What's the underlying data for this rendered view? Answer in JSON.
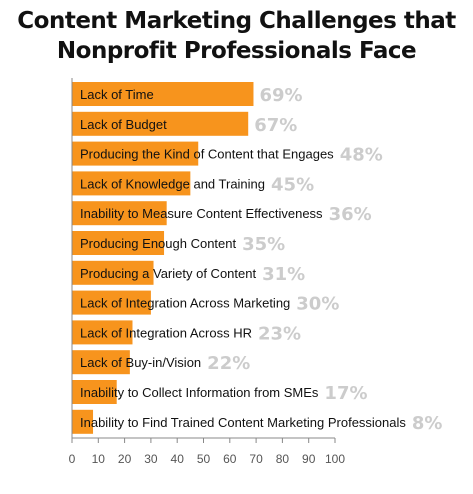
{
  "chart_data": {
    "type": "bar",
    "orientation": "horizontal",
    "title_lines": [
      "Content Marketing Challenges that",
      "Nonprofit Professionals Face"
    ],
    "categories": [
      "Lack of Time",
      "Lack of Budget",
      "Producing the Kind of Content that Engages",
      "Lack of Knowledge and Training",
      "Inability to Measure Content Effectiveness",
      "Producing Enough Content",
      "Producing a Variety of Content",
      "Lack of Integration Across Marketing",
      "Lack of Integration Across HR",
      "Lack of Buy-in/Vision",
      "Inability to Collect Information from SMEs",
      "Inability to Find Trained Content Marketing Professionals"
    ],
    "values": [
      69,
      67,
      48,
      45,
      36,
      35,
      31,
      30,
      23,
      22,
      17,
      8
    ],
    "value_labels": [
      "69%",
      "67%",
      "48%",
      "45%",
      "36%",
      "35%",
      "31%",
      "30%",
      "23%",
      "22%",
      "17%",
      "8%"
    ],
    "xlim": [
      0,
      100
    ],
    "xticks": [
      0,
      10,
      20,
      30,
      40,
      50,
      60,
      70,
      80,
      90,
      100
    ],
    "grid": false,
    "colors": {
      "bar": "#f7941d",
      "value_label": "#cccccc",
      "text": "#111111",
      "axis": "#888888"
    }
  }
}
